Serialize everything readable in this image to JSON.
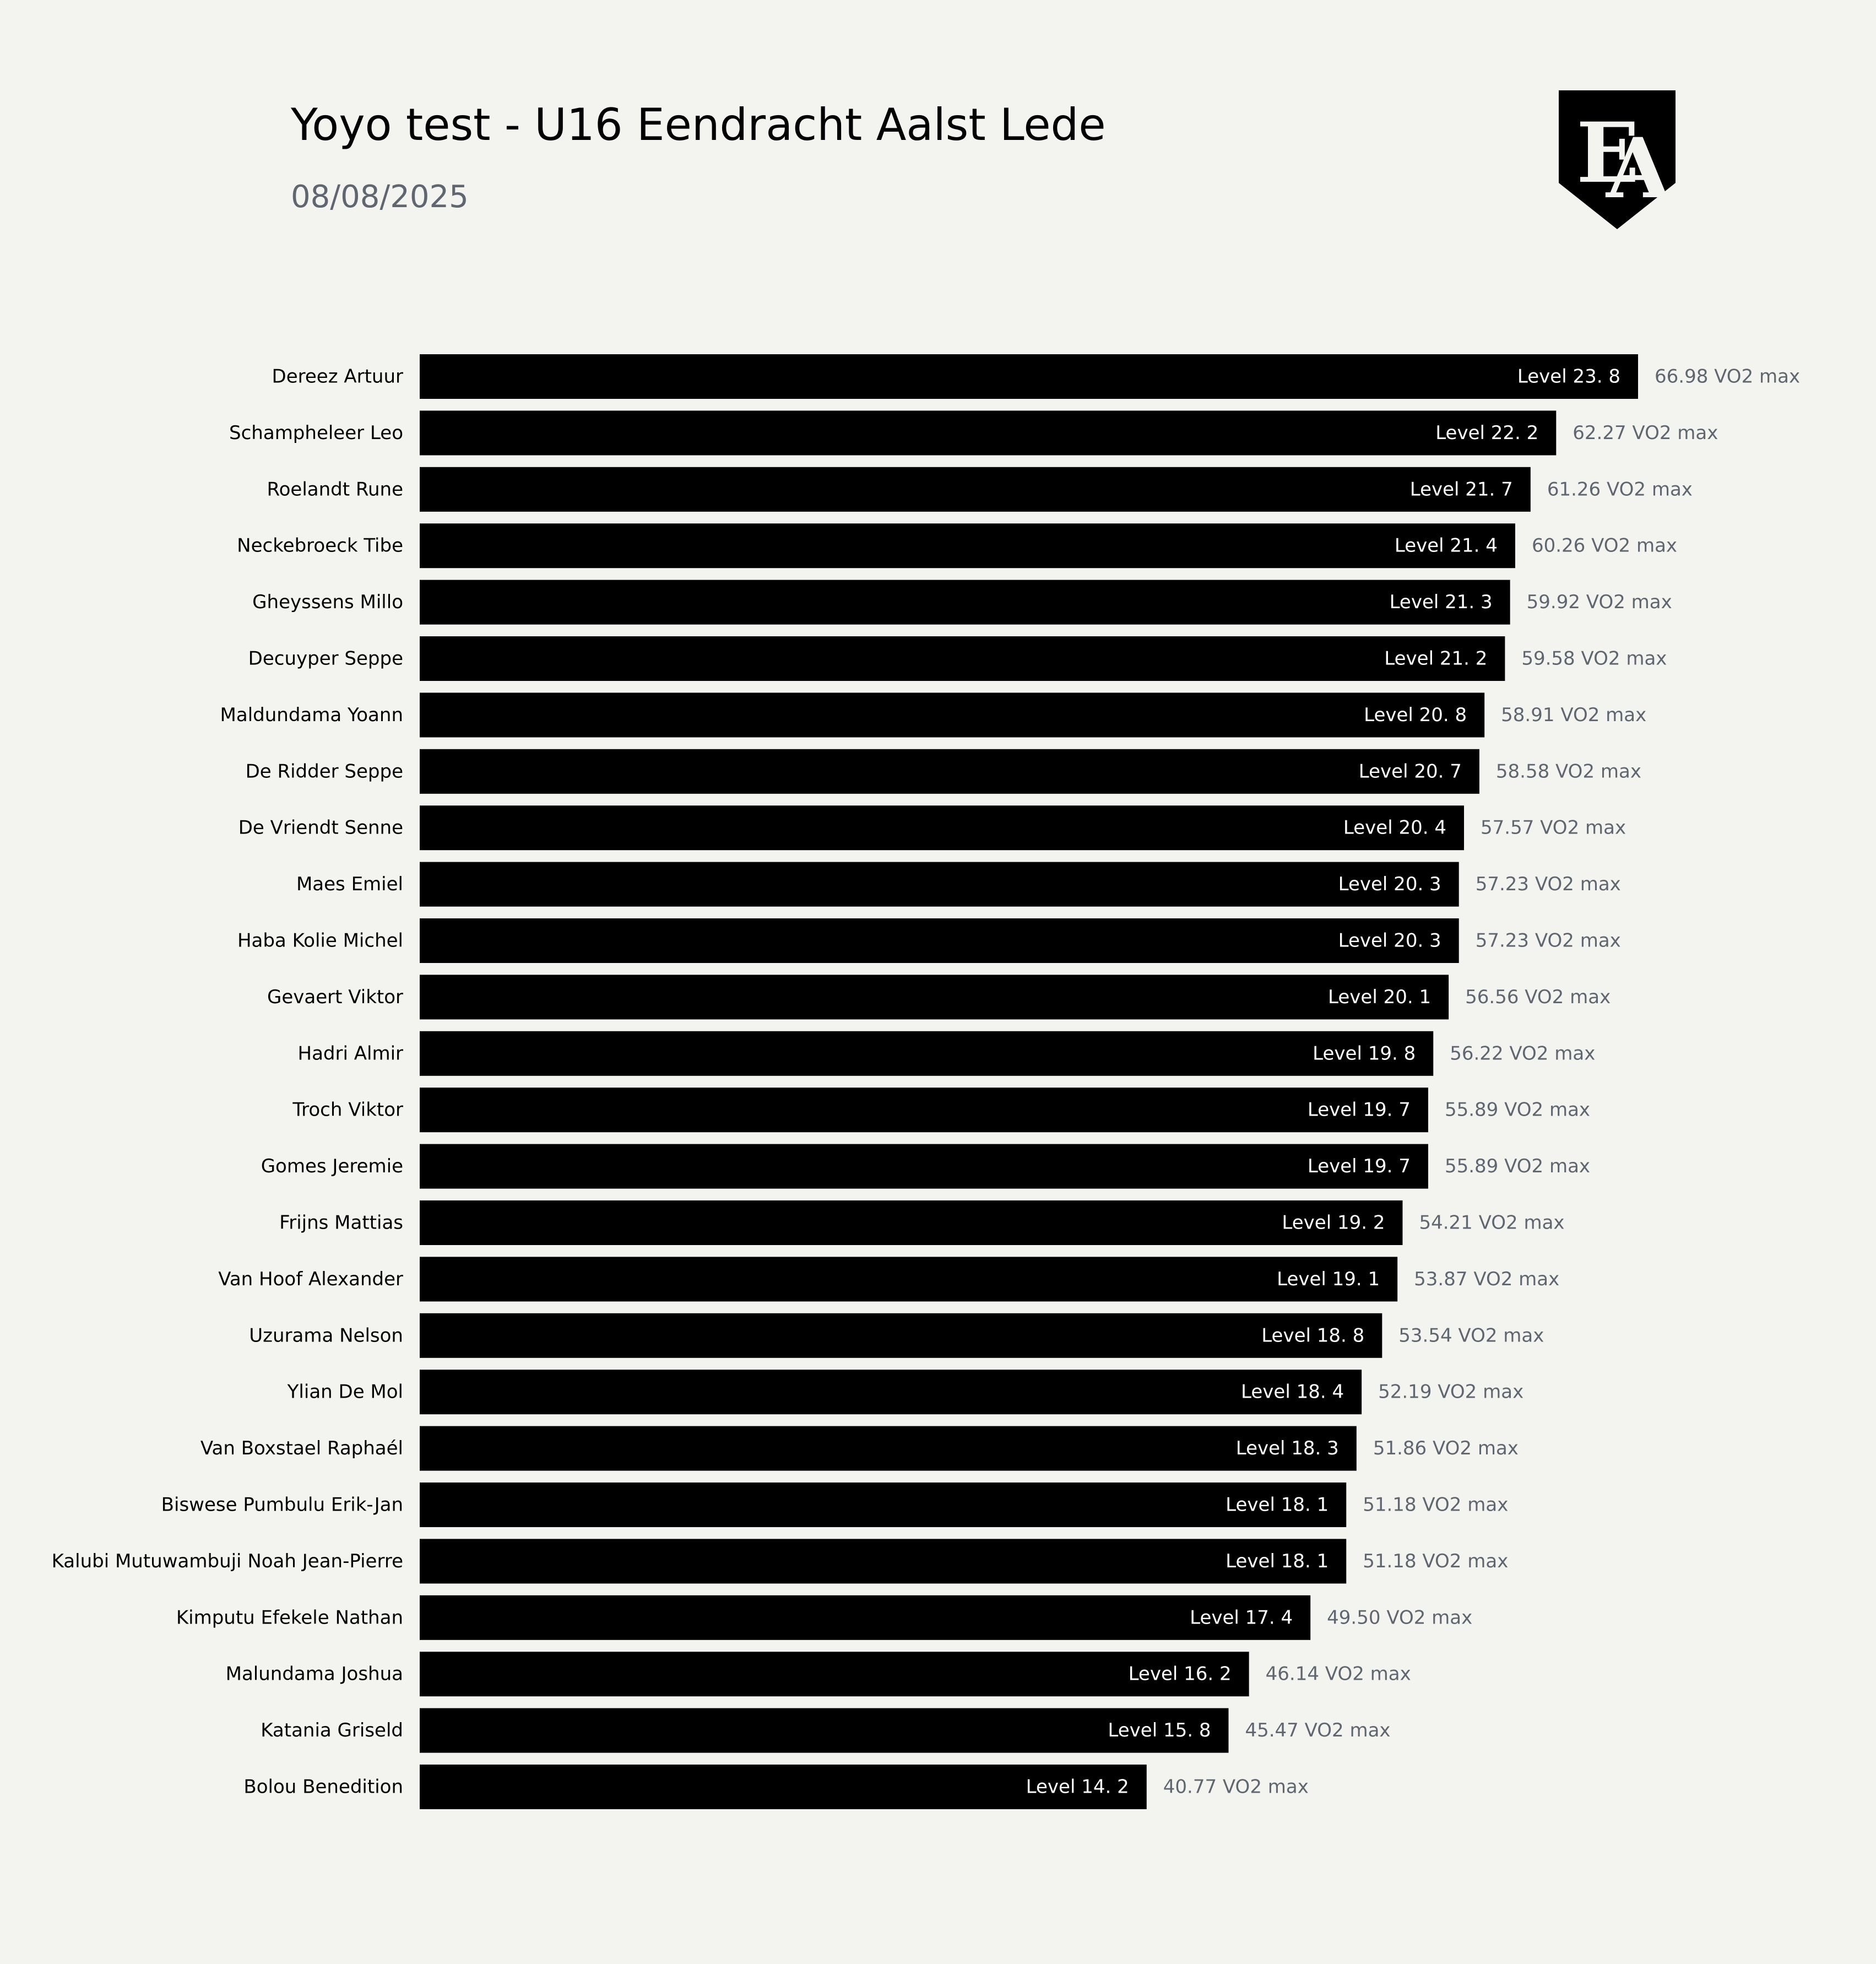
{
  "header": {
    "title": "Yoyo test - U16 Eendracht Aalst Lede",
    "date": "08/08/2025",
    "logo_text": "EA"
  },
  "colors": {
    "background": "#f3f4ef",
    "bar": "#000000",
    "bar_label": "#ffffff",
    "value_label": "#5f6670",
    "name_label": "#000000"
  },
  "chart_data": {
    "type": "bar",
    "orientation": "horizontal",
    "title": "Yoyo test - U16 Eendracht Aalst Lede",
    "subtitle": "08/08/2025",
    "xlim": [
      0,
      23.8
    ],
    "grid": false,
    "categories": [
      "Dereez Artuur",
      "Schampheleer Leo",
      "Roelandt Rune",
      "Neckebroeck Tibe",
      "Gheyssens Millo",
      "Decuyper Seppe",
      "Maldundama Yoann",
      "De Ridder Seppe",
      "De Vriendt Senne",
      "Maes Emiel",
      "Haba Kolie Michel",
      "Gevaert Viktor",
      "Hadri Almir",
      "Troch Viktor",
      "Gomes Jeremie",
      "Frijns Mattias",
      "Van Hoof Alexander",
      "Uzurama Nelson",
      "Ylian De Mol",
      "Van Boxstael Raphaél",
      "Biswese Pumbulu Erik-Jan",
      "Kalubi Mutuwambuji Noah Jean-Pierre",
      "Kimputu Efekele Nathan",
      "Malundama Joshua",
      "Katania Griseld",
      "Bolou Benedition"
    ],
    "values": [
      23.8,
      22.2,
      21.7,
      21.4,
      21.3,
      21.2,
      20.8,
      20.7,
      20.4,
      20.3,
      20.3,
      20.1,
      19.8,
      19.7,
      19.7,
      19.2,
      19.1,
      18.8,
      18.4,
      18.3,
      18.1,
      18.1,
      17.4,
      16.2,
      15.8,
      14.2
    ],
    "bar_labels": [
      "Level 23. 8",
      "Level 22. 2",
      "Level 21. 7",
      "Level 21. 4",
      "Level 21. 3",
      "Level 21. 2",
      "Level 20. 8",
      "Level 20. 7",
      "Level 20. 4",
      "Level 20. 3",
      "Level 20. 3",
      "Level 20. 1",
      "Level 19. 8",
      "Level 19. 7",
      "Level 19. 7",
      "Level 19. 2",
      "Level 19. 1",
      "Level 18. 8",
      "Level 18. 4",
      "Level 18. 3",
      "Level 18. 1",
      "Level 18. 1",
      "Level 17. 4",
      "Level 16. 2",
      "Level 15. 8",
      "Level 14. 2"
    ],
    "vo2max": [
      66.98,
      62.27,
      61.26,
      60.26,
      59.92,
      59.58,
      58.91,
      58.58,
      57.57,
      57.23,
      57.23,
      56.56,
      56.22,
      55.89,
      55.89,
      54.21,
      53.87,
      53.54,
      52.19,
      51.86,
      51.18,
      51.18,
      49.5,
      46.14,
      45.47,
      40.77
    ],
    "vo2max_labels": [
      "66.98 VO2 max",
      "62.27 VO2 max",
      "61.26 VO2 max",
      "60.26 VO2 max",
      "59.92 VO2 max",
      "59.58 VO2 max",
      "58.91 VO2 max",
      "58.58 VO2 max",
      "57.57 VO2 max",
      "57.23 VO2 max",
      "57.23 VO2 max",
      "56.56 VO2 max",
      "56.22 VO2 max",
      "55.89 VO2 max",
      "55.89 VO2 max",
      "54.21 VO2 max",
      "53.87 VO2 max",
      "53.54 VO2 max",
      "52.19 VO2 max",
      "51.86 VO2 max",
      "51.18 VO2 max",
      "51.18 VO2 max",
      "49.50 VO2 max",
      "46.14 VO2 max",
      "45.47 VO2 max",
      "40.77 VO2 max"
    ]
  }
}
